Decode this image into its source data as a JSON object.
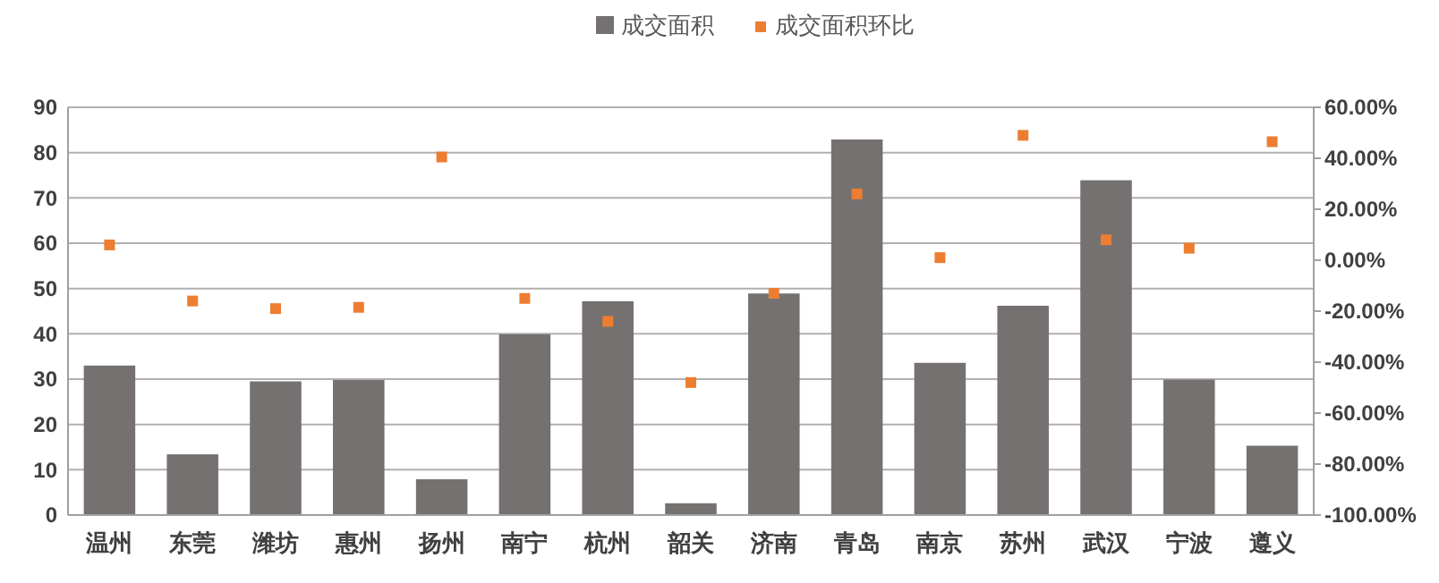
{
  "chart_data": {
    "type": "bar",
    "categories": [
      "温州",
      "东莞",
      "潍坊",
      "惠州",
      "扬州",
      "南宁",
      "杭州",
      "韶关",
      "济南",
      "青岛",
      "南京",
      "苏州",
      "武汉",
      "宁波",
      "遵义"
    ],
    "series": [
      {
        "name": "成交面积",
        "color": "#767171",
        "values": [
          33,
          13.4,
          29.5,
          29.8,
          7.9,
          39.9,
          47.2,
          2.6,
          48.9,
          82.9,
          33.6,
          46.2,
          73.9,
          29.9,
          15.3
        ]
      },
      {
        "name": "成交面积环比",
        "type": "scatter",
        "axis": "y2",
        "color": "#ed7d31",
        "values": [
          6,
          -16,
          -19,
          -18.5,
          40.5,
          -15,
          -24,
          -48,
          -13,
          26,
          1,
          49,
          8,
          4.7,
          46.5
        ]
      }
    ],
    "ylim": [
      0,
      90
    ],
    "yticks": [
      0,
      10,
      20,
      30,
      40,
      50,
      60,
      70,
      80,
      90
    ],
    "y2lim": [
      -100,
      60
    ],
    "y2ticks": [
      {
        "value": -100,
        "label": "-100.00%"
      },
      {
        "value": -80,
        "label": "-80.00%"
      },
      {
        "value": -60,
        "label": "-60.00%"
      },
      {
        "value": -40,
        "label": "-40.00%"
      },
      {
        "value": -20,
        "label": "-20.00%"
      },
      {
        "value": 0,
        "label": "0.00%"
      },
      {
        "value": 20,
        "label": "20.00%"
      },
      {
        "value": 40,
        "label": "40.00%"
      },
      {
        "value": 60,
        "label": "60.00%"
      }
    ],
    "grid": "y",
    "legend": "top",
    "marker": "square"
  }
}
